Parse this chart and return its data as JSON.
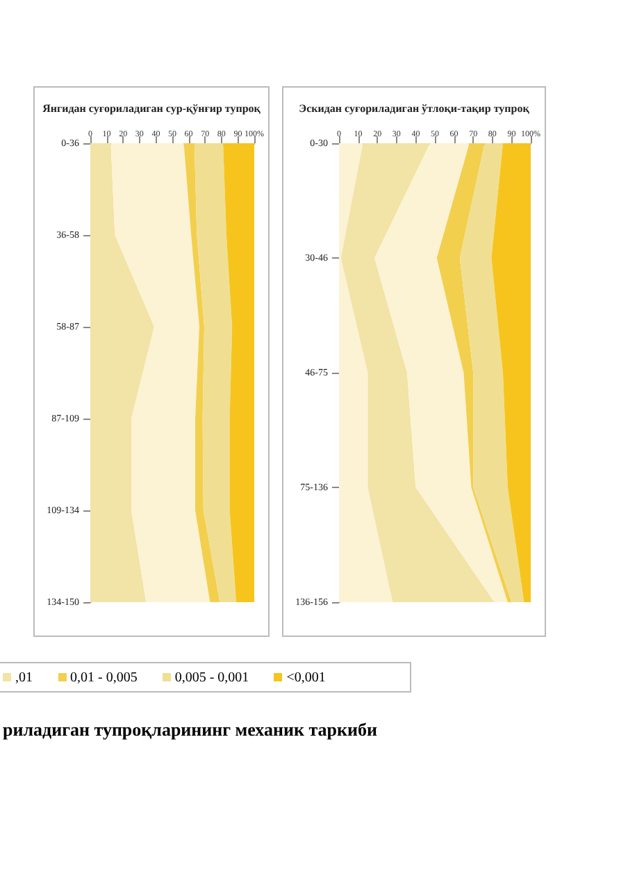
{
  "chart_data": [
    {
      "type": "area",
      "orientation": "horizontal",
      "stacked": true,
      "title": "Янгидан суғориладиган сур-қўнғир тупроқ",
      "categories": [
        "0-36",
        "36-58",
        "58-87",
        "87-109",
        "109-134",
        "134-150"
      ],
      "xlim": [
        0,
        100
      ],
      "xticks": [
        0,
        10,
        20,
        30,
        40,
        50,
        60,
        70,
        80,
        90,
        {
          "value": 100,
          "label": "100%"
        }
      ],
      "grid": false,
      "legend": false,
      "series": [
        {
          "color": "#f2e3a6",
          "values": [
            12.5,
            15,
            39,
            25,
            25,
            34
          ]
        },
        {
          "color": "#fcf3d4",
          "values": [
            44.5,
            46.5,
            27.5,
            39,
            39,
            39
          ]
        },
        {
          "color": "#f3cf4e",
          "values": [
            6.5,
            3.5,
            3,
            4.5,
            5,
            6
          ]
        },
        {
          "color": "#f0df92",
          "values": [
            17.5,
            18,
            17,
            16.5,
            16,
            10
          ]
        },
        {
          "color": "#f6c41c",
          "values": [
            19,
            17,
            13.5,
            15,
            15,
            11
          ]
        }
      ]
    },
    {
      "type": "area",
      "orientation": "horizontal",
      "stacked": true,
      "title": "Эскидан суғориладиган ўтлоқи-тақир тупроқ",
      "categories": [
        "0-30",
        "30-46",
        "46-75",
        "75-136",
        "136-156"
      ],
      "xlim": [
        0,
        100
      ],
      "xticks": [
        0,
        10,
        20,
        30,
        40,
        50,
        60,
        70,
        80,
        90,
        {
          "value": 100,
          "label": "100%"
        }
      ],
      "grid": false,
      "legend": "bottom",
      "annotations": [
        "риладиган тупроқларининг механик таркиби"
      ],
      "series": [
        {
          "color": "#fcf3d4",
          "values": [
            12.5,
            1,
            15,
            15,
            28
          ]
        },
        {
          "name": ",01",
          "color": "#f2e3a6",
          "values": [
            35,
            17.5,
            20.5,
            25,
            53
          ]
        },
        {
          "color": "#fcf3d4",
          "values": [
            20.5,
            32.5,
            29.5,
            29,
            7
          ]
        },
        {
          "name": "0,01 - 0,005",
          "color": "#f3cf4e",
          "values": [
            8,
            12,
            5,
            1,
            2
          ]
        },
        {
          "name": "0,005 - 0,001",
          "color": "#f0df92",
          "values": [
            9.5,
            16.5,
            15.5,
            18,
            6.5
          ]
        },
        {
          "name": "<0,001",
          "color": "#f6c41c",
          "values": [
            14.5,
            20.5,
            14.5,
            12,
            3.5
          ]
        }
      ]
    }
  ]
}
